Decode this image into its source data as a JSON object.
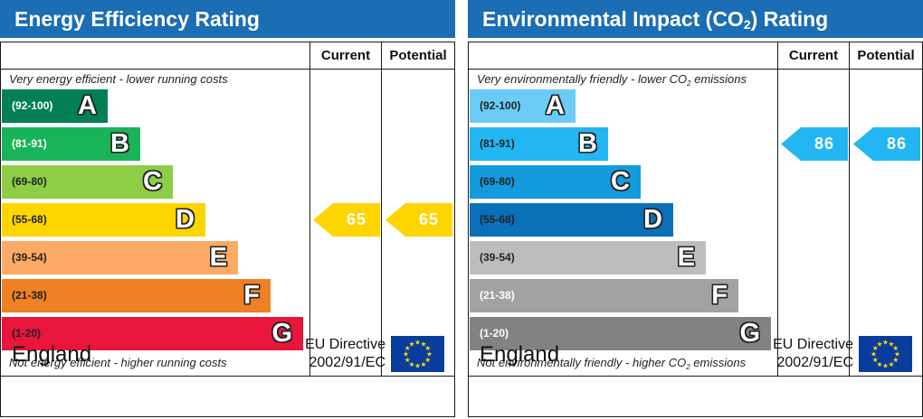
{
  "energy": {
    "title": "Energy Efficiency Rating",
    "header_current": "Current",
    "header_potential": "Potential",
    "top_note": "Very energy efficient - lower running costs",
    "bottom_note": "Not energy efficient - higher running costs",
    "bands": [
      {
        "range": "(92-100)",
        "letter": "A",
        "color": "#008054",
        "text_color": "#ffffff"
      },
      {
        "range": "(81-91)",
        "letter": "B",
        "color": "#19b459",
        "text_color": "#ffffff"
      },
      {
        "range": "(69-80)",
        "letter": "C",
        "color": "#8dce46",
        "text_color": "#222222"
      },
      {
        "range": "(55-68)",
        "letter": "D",
        "color": "#ffd500",
        "text_color": "#222222"
      },
      {
        "range": "(39-54)",
        "letter": "E",
        "color": "#fcaa65",
        "text_color": "#222222"
      },
      {
        "range": "(21-38)",
        "letter": "F",
        "color": "#ef8023",
        "text_color": "#222222"
      },
      {
        "range": "(1-20)",
        "letter": "G",
        "color": "#e9153b",
        "text_color": "#222222"
      }
    ],
    "current": {
      "value": "65",
      "band": "D",
      "color": "#ffd500"
    },
    "potential": {
      "value": "65",
      "band": "D",
      "color": "#ffd500"
    },
    "country": "England",
    "directive_line1": "EU Directive",
    "directive_line2": "2002/91/EC"
  },
  "environment": {
    "title_main": "Environmental Impact (CO",
    "title_sub": "2",
    "title_end": ") Rating",
    "header_current": "Current",
    "header_potential": "Potential",
    "top_note": "Very environmentally friendly - lower CO",
    "top_note_sub": "2",
    "top_note_end": " emissions",
    "bottom_note": "Not environmentally friendly - higher CO",
    "bottom_note_sub": "2",
    "bottom_note_end": " emissions",
    "bands": [
      {
        "range": "(92-100)",
        "letter": "A",
        "color": "#6bcbf6",
        "text_color": "#222222"
      },
      {
        "range": "(81-91)",
        "letter": "B",
        "color": "#22b6f2",
        "text_color": "#222222"
      },
      {
        "range": "(69-80)",
        "letter": "C",
        "color": "#139bdd",
        "text_color": "#222222"
      },
      {
        "range": "(55-68)",
        "letter": "D",
        "color": "#0a70b8",
        "text_color": "#222222"
      },
      {
        "range": "(39-54)",
        "letter": "E",
        "color": "#bdbdbd",
        "text_color": "#222222"
      },
      {
        "range": "(21-38)",
        "letter": "F",
        "color": "#a2a2a2",
        "text_color": "#ffffff"
      },
      {
        "range": "(1-20)",
        "letter": "G",
        "color": "#828282",
        "text_color": "#ffffff"
      }
    ],
    "current": {
      "value": "86",
      "band": "B",
      "color": "#22b6f2"
    },
    "potential": {
      "value": "86",
      "band": "B",
      "color": "#22b6f2"
    },
    "country": "England",
    "directive_line1": "EU Directive",
    "directive_line2": "2002/91/EC"
  },
  "flag_icon": "eu-flag-icon"
}
